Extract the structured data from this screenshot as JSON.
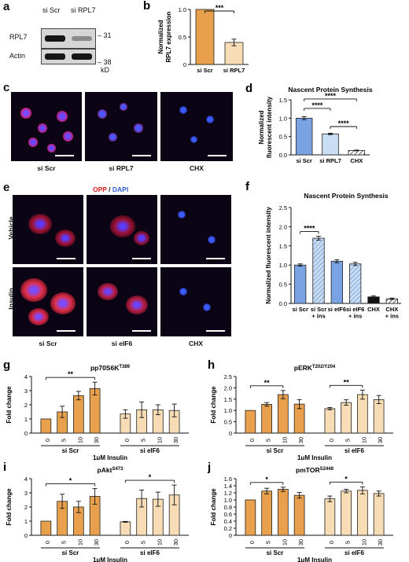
{
  "panels": {
    "a": {
      "letter": "a",
      "lanes": [
        "si Scr",
        "si RPL7"
      ],
      "rows": [
        {
          "name": "RPL7",
          "kd": "31",
          "band_intensity": [
            1.0,
            0.45
          ]
        },
        {
          "name": "Actin",
          "kd": "38",
          "band_intensity": [
            1.0,
            1.0
          ]
        }
      ],
      "unit": "kD"
    },
    "c": {
      "letter": "c",
      "labels": [
        "si Scr",
        "si RPL7",
        "CHX"
      ]
    },
    "e": {
      "letter": "e",
      "stain_opp": "OPP",
      "stain_sep": " / ",
      "stain_dapi": "DAPI",
      "row_labels": [
        "Vehicle",
        "Insulin"
      ],
      "col_labels": [
        "si Scr",
        "si eIF6",
        "CHX"
      ]
    }
  },
  "colors": {
    "orange": "#e8a04c",
    "light_orange": "#f7dcb5",
    "blue": "#7aa3e4",
    "light_blue": "#c9ddf3",
    "opp_red": "#e0201e",
    "dapi_blue": "#2a5fd8"
  },
  "chart_data": [
    {
      "id": "b",
      "letter": "b",
      "type": "bar",
      "categories": [
        "si Scr",
        "si RPL7"
      ],
      "values": [
        1.0,
        0.4
      ],
      "errors": [
        0.0,
        0.06
      ],
      "ylabel": "Normalized\nRPL7 expression",
      "ylim": [
        0,
        1.0
      ],
      "yticks": [
        0,
        0.5,
        1.0
      ],
      "ytick_labels": [
        "0",
        "0.5",
        "1.0"
      ],
      "significance": [
        {
          "from": 0,
          "to": 1,
          "label": "***"
        }
      ],
      "bar_colors": [
        "#e8a04c",
        "#f7dcb5"
      ]
    },
    {
      "id": "d",
      "letter": "d",
      "type": "bar",
      "title": "Nascent Protein Synthesis",
      "categories": [
        "si Scr",
        "si RPL7",
        "CHX"
      ],
      "values": [
        1.0,
        0.57,
        0.12
      ],
      "errors": [
        0.04,
        0.02,
        0.01
      ],
      "ylabel": "Normalized\nfluorescent intensity",
      "ylim": [
        0,
        1.5
      ],
      "yticks": [
        0,
        0.5,
        1.0,
        1.5
      ],
      "ytick_labels": [
        "0.0",
        "0.5",
        "1.0",
        "1.5"
      ],
      "significance": [
        {
          "from": 0,
          "to": 1,
          "label": "****"
        },
        {
          "from": 0,
          "to": 2,
          "label": "****"
        },
        {
          "from": 1,
          "to": 2,
          "label": "****"
        }
      ],
      "bar_colors": [
        "#7aa3e4",
        "#c9ddf3",
        "#ffffff"
      ],
      "hatched": [
        false,
        false,
        true
      ]
    },
    {
      "id": "f",
      "letter": "f",
      "type": "bar",
      "title": "Nascent Protein Synthesis",
      "categories": [
        "si Scr",
        "si Scr\n+ ins",
        "si eIF6",
        "si eIF6\n+ ins",
        "CHX",
        "CHX\n+ ins"
      ],
      "values": [
        1.0,
        1.7,
        1.1,
        1.03,
        0.17,
        0.12
      ],
      "errors": [
        0.03,
        0.05,
        0.04,
        0.04,
        0.03,
        0.02
      ],
      "ylabel": "Normalized fluorescent intensity",
      "ylim": [
        0,
        2.5
      ],
      "yticks": [
        0,
        0.5,
        1.0,
        1.5,
        2.0,
        2.5
      ],
      "ytick_labels": [
        "0.0",
        "0.5",
        "1.0",
        "1.5",
        "2.0",
        "2.5"
      ],
      "significance": [
        {
          "from": 0,
          "to": 1,
          "label": "****"
        }
      ],
      "bar_colors": [
        "#7aa3e4",
        "#c9ddf3",
        "#7aa3e4",
        "#c9ddf3",
        "#111111",
        "#ffffff"
      ],
      "hatched": [
        false,
        true,
        false,
        true,
        false,
        true
      ]
    },
    {
      "id": "g",
      "letter": "g",
      "type": "bar",
      "title": "pp70S6K",
      "title_sup": "T389",
      "categories": [
        "0",
        "5",
        "10",
        "30",
        "0",
        "5",
        "10",
        "30"
      ],
      "groups": [
        "si Scr",
        "si eIF6"
      ],
      "values": [
        1.0,
        1.5,
        2.65,
        3.15,
        1.35,
        1.65,
        1.65,
        1.6
      ],
      "errors": [
        0.0,
        0.4,
        0.3,
        0.45,
        0.3,
        0.55,
        0.35,
        0.45
      ],
      "ylabel": "Fold change",
      "xlabel": "1μM Insulin",
      "ylim": [
        0,
        4
      ],
      "yticks": [
        0,
        1,
        2,
        3,
        4
      ],
      "ytick_labels": [
        "0",
        "1",
        "2",
        "3",
        "4"
      ],
      "significance": [
        {
          "from": 0,
          "to": 3,
          "label": "**"
        }
      ]
    },
    {
      "id": "h",
      "letter": "h",
      "type": "bar",
      "title": "pERK",
      "title_sup": "T202/Y204",
      "categories": [
        "0",
        "5",
        "10",
        "30",
        "0",
        "5",
        "10",
        "30"
      ],
      "groups": [
        "si Scr",
        "si eIF6"
      ],
      "values": [
        1.0,
        1.27,
        1.7,
        1.28,
        1.08,
        1.35,
        1.7,
        1.48
      ],
      "errors": [
        0.0,
        0.08,
        0.18,
        0.2,
        0.05,
        0.12,
        0.2,
        0.18
      ],
      "ylabel": "Fold change",
      "xlabel": "1μM Insulin",
      "ylim": [
        0,
        2.5
      ],
      "yticks": [
        0,
        0.5,
        1.0,
        1.5,
        2.0,
        2.5
      ],
      "ytick_labels": [
        "0",
        "0.5",
        "1.0",
        "1.5",
        "2.0",
        "2.5"
      ],
      "significance": [
        {
          "from": 0,
          "to": 2,
          "label": "**"
        },
        {
          "from": 4,
          "to": 6,
          "label": "**"
        }
      ]
    },
    {
      "id": "i",
      "letter": "i",
      "type": "bar",
      "title": "pAkt",
      "title_sup": "S473",
      "categories": [
        "0",
        "5",
        "10",
        "30",
        "0",
        "5",
        "10",
        "30"
      ],
      "groups": [
        "si Scr",
        "si eIF6"
      ],
      "values": [
        1.0,
        2.4,
        2.0,
        2.75,
        0.95,
        2.6,
        2.55,
        2.85
      ],
      "errors": [
        0.0,
        0.5,
        0.4,
        0.55,
        0.03,
        0.6,
        0.5,
        0.7
      ],
      "ylabel": "Fold change",
      "xlabel": "1μM Insulin",
      "ylim": [
        0,
        4
      ],
      "yticks": [
        0,
        1,
        2,
        3,
        4
      ],
      "ytick_labels": [
        "0",
        "1",
        "2",
        "3",
        "4"
      ],
      "significance": [
        {
          "from": 0,
          "to": 3,
          "label": "*"
        },
        {
          "from": 4,
          "to": 7,
          "label": "*"
        }
      ]
    },
    {
      "id": "j",
      "letter": "j",
      "type": "bar",
      "title": "pmTOR",
      "title_sup": "S2448",
      "categories": [
        "0",
        "5",
        "10",
        "30",
        "0",
        "5",
        "10",
        "30"
      ],
      "groups": [
        "si Scr",
        "si eIF6"
      ],
      "values": [
        1.0,
        1.25,
        1.3,
        1.13,
        1.03,
        1.25,
        1.27,
        1.18
      ],
      "errors": [
        0.0,
        0.08,
        0.06,
        0.08,
        0.08,
        0.05,
        0.1,
        0.07
      ],
      "ylabel": "Fold change",
      "xlabel": "1μM Insulin",
      "ylim": [
        0,
        1.6
      ],
      "yticks": [
        0,
        0.2,
        0.4,
        0.6,
        0.8,
        1.0,
        1.2,
        1.4,
        1.6
      ],
      "ytick_labels": [
        "0",
        "0.2",
        "0.4",
        "0.6",
        "0.8",
        "1.0",
        "1.2",
        "1.4",
        "1.6"
      ],
      "significance": [
        {
          "from": 0,
          "to": 2,
          "label": "*"
        },
        {
          "from": 4,
          "to": 6,
          "label": "*"
        }
      ]
    }
  ]
}
